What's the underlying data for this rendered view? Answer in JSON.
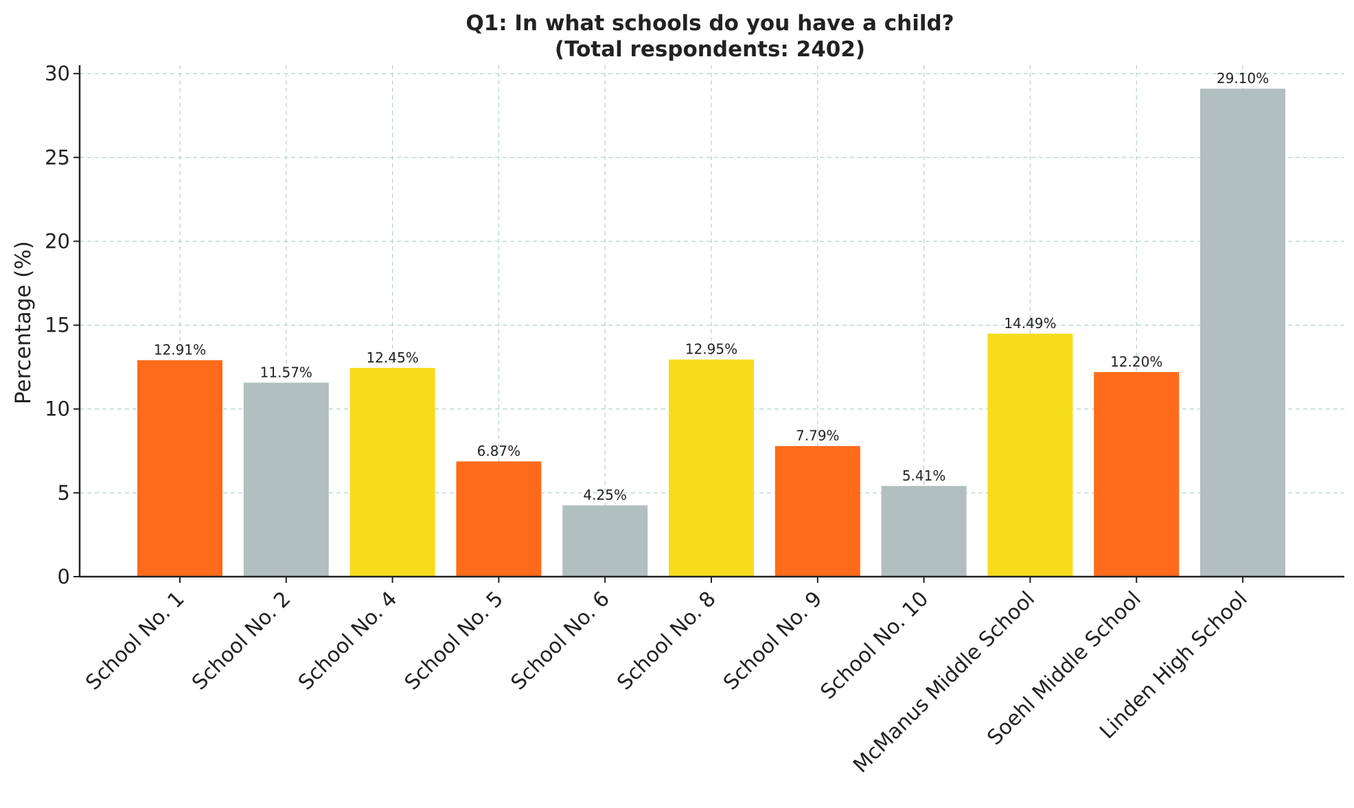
{
  "chart_data": {
    "type": "bar",
    "title": "Q1: In what schools do you have a child?",
    "subtitle": "(Total respondents: 2402)",
    "ylabel": "Percentage (%)",
    "xlabel": "",
    "ylim": [
      0,
      30.5
    ],
    "yticks": [
      0,
      5,
      10,
      15,
      20,
      25,
      30
    ],
    "grid": true,
    "categories": [
      "School No. 1",
      "School No. 2",
      "School No. 4",
      "School No. 5",
      "School No. 6",
      "School No. 8",
      "School No. 9",
      "School No. 10",
      "McManus Middle School",
      "Soehl Middle School",
      "Linden High School"
    ],
    "values": [
      12.91,
      11.57,
      12.45,
      6.87,
      4.25,
      12.95,
      7.79,
      5.41,
      14.49,
      12.2,
      29.1
    ],
    "labels": [
      "12.91%",
      "11.57%",
      "12.45%",
      "6.87%",
      "4.25%",
      "12.95%",
      "7.79%",
      "5.41%",
      "14.49%",
      "12.20%",
      "29.10%"
    ],
    "colors": [
      "#ff6b1a",
      "#b1bfbe",
      "#f7dc1c",
      "#ff6b1a",
      "#b1bfbe",
      "#f7dc1c",
      "#ff6b1a",
      "#b1bfbe",
      "#f7dc1c",
      "#ff6b1a",
      "#b1bfbe"
    ]
  }
}
